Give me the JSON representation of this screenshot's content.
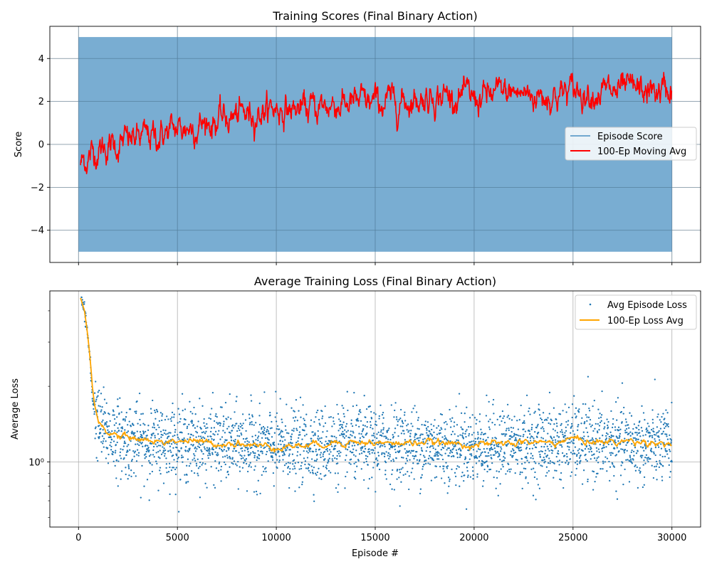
{
  "chart_data": [
    {
      "type": "line",
      "title": "Training Scores (Final Binary Action)",
      "xlabel": "",
      "ylabel": "Score",
      "xlim": [
        -1450,
        31450
      ],
      "ylim": [
        -5.5,
        5.5
      ],
      "x_ticks": [
        0,
        5000,
        10000,
        15000,
        20000,
        25000,
        30000
      ],
      "y_ticks": [
        -4,
        -2,
        0,
        2,
        4
      ],
      "y_tick_labels": [
        "−4",
        "−2",
        "0",
        "2",
        "4"
      ],
      "grid": true,
      "legend": "center-right",
      "series": [
        {
          "name": "Episode Score",
          "style": "band",
          "color": "#1f77b4",
          "x_range": [
            0,
            30000
          ],
          "y_range": [
            -5,
            5
          ]
        },
        {
          "name": "100-Ep Moving Avg",
          "style": "line",
          "color": "#ff0000",
          "x": [
            100,
            1000,
            2000,
            3000,
            4000,
            5000,
            6000,
            7000,
            8000,
            9000,
            10000,
            11000,
            12000,
            13000,
            14000,
            15000,
            16000,
            17000,
            18000,
            19000,
            20000,
            21000,
            22000,
            23000,
            24000,
            25000,
            26000,
            27000,
            28000,
            29000,
            30000
          ],
          "values": [
            -0.9,
            -0.2,
            0.0,
            0.3,
            0.4,
            0.7,
            0.9,
            1.1,
            1.3,
            1.5,
            1.7,
            1.6,
            1.7,
            1.9,
            1.9,
            1.9,
            2.0,
            2.1,
            2.3,
            2.3,
            2.1,
            2.3,
            2.4,
            2.3,
            2.3,
            2.5,
            2.5,
            2.4,
            2.5,
            2.4,
            2.6
          ]
        }
      ]
    },
    {
      "type": "scatter",
      "title": "Average Training Loss (Final Binary Action)",
      "xlabel": "Episode #",
      "ylabel": "Average Loss",
      "y_scale": "log",
      "xlim": [
        -1450,
        31450
      ],
      "ylim": [
        0.55,
        4.8
      ],
      "x_ticks": [
        0,
        5000,
        10000,
        15000,
        20000,
        25000,
        30000
      ],
      "x_tick_labels": [
        "0",
        "5000",
        "10000",
        "15000",
        "20000",
        "25000",
        "30000"
      ],
      "y_ticks": [
        1.0
      ],
      "y_tick_labels": [
        "10⁰"
      ],
      "grid": true,
      "legend": "top-right",
      "series": [
        {
          "name": "Avg Episode Loss",
          "style": "points",
          "color": "#1f77b4",
          "x": [
            100,
            300,
            500,
            700,
            1000,
            1500,
            2000,
            3000,
            5000,
            10000,
            15000,
            20000,
            25000,
            30000
          ],
          "values": [
            4.5,
            4.0,
            3.0,
            1.8,
            1.4,
            1.3,
            1.25,
            1.2,
            1.2,
            1.15,
            1.18,
            1.15,
            1.2,
            1.15
          ]
        },
        {
          "name": "100-Ep Loss Avg",
          "style": "line",
          "color": "#ffa500",
          "x": [
            100,
            300,
            500,
            700,
            800,
            1000,
            1500,
            2000,
            3000,
            4000,
            5000,
            6000,
            7000,
            8000,
            9000,
            10000,
            11000,
            12000,
            13000,
            14000,
            15000,
            16000,
            17000,
            18000,
            19000,
            20000,
            21000,
            22000,
            23000,
            24000,
            25000,
            26000,
            27000,
            28000,
            29000,
            30000
          ],
          "values": [
            4.5,
            4.0,
            3.0,
            2.0,
            1.7,
            1.45,
            1.3,
            1.27,
            1.24,
            1.2,
            1.22,
            1.2,
            1.18,
            1.19,
            1.16,
            1.15,
            1.16,
            1.17,
            1.2,
            1.2,
            1.19,
            1.18,
            1.2,
            1.19,
            1.18,
            1.17,
            1.18,
            1.19,
            1.2,
            1.19,
            1.24,
            1.2,
            1.2,
            1.21,
            1.2,
            1.18
          ]
        }
      ]
    }
  ]
}
